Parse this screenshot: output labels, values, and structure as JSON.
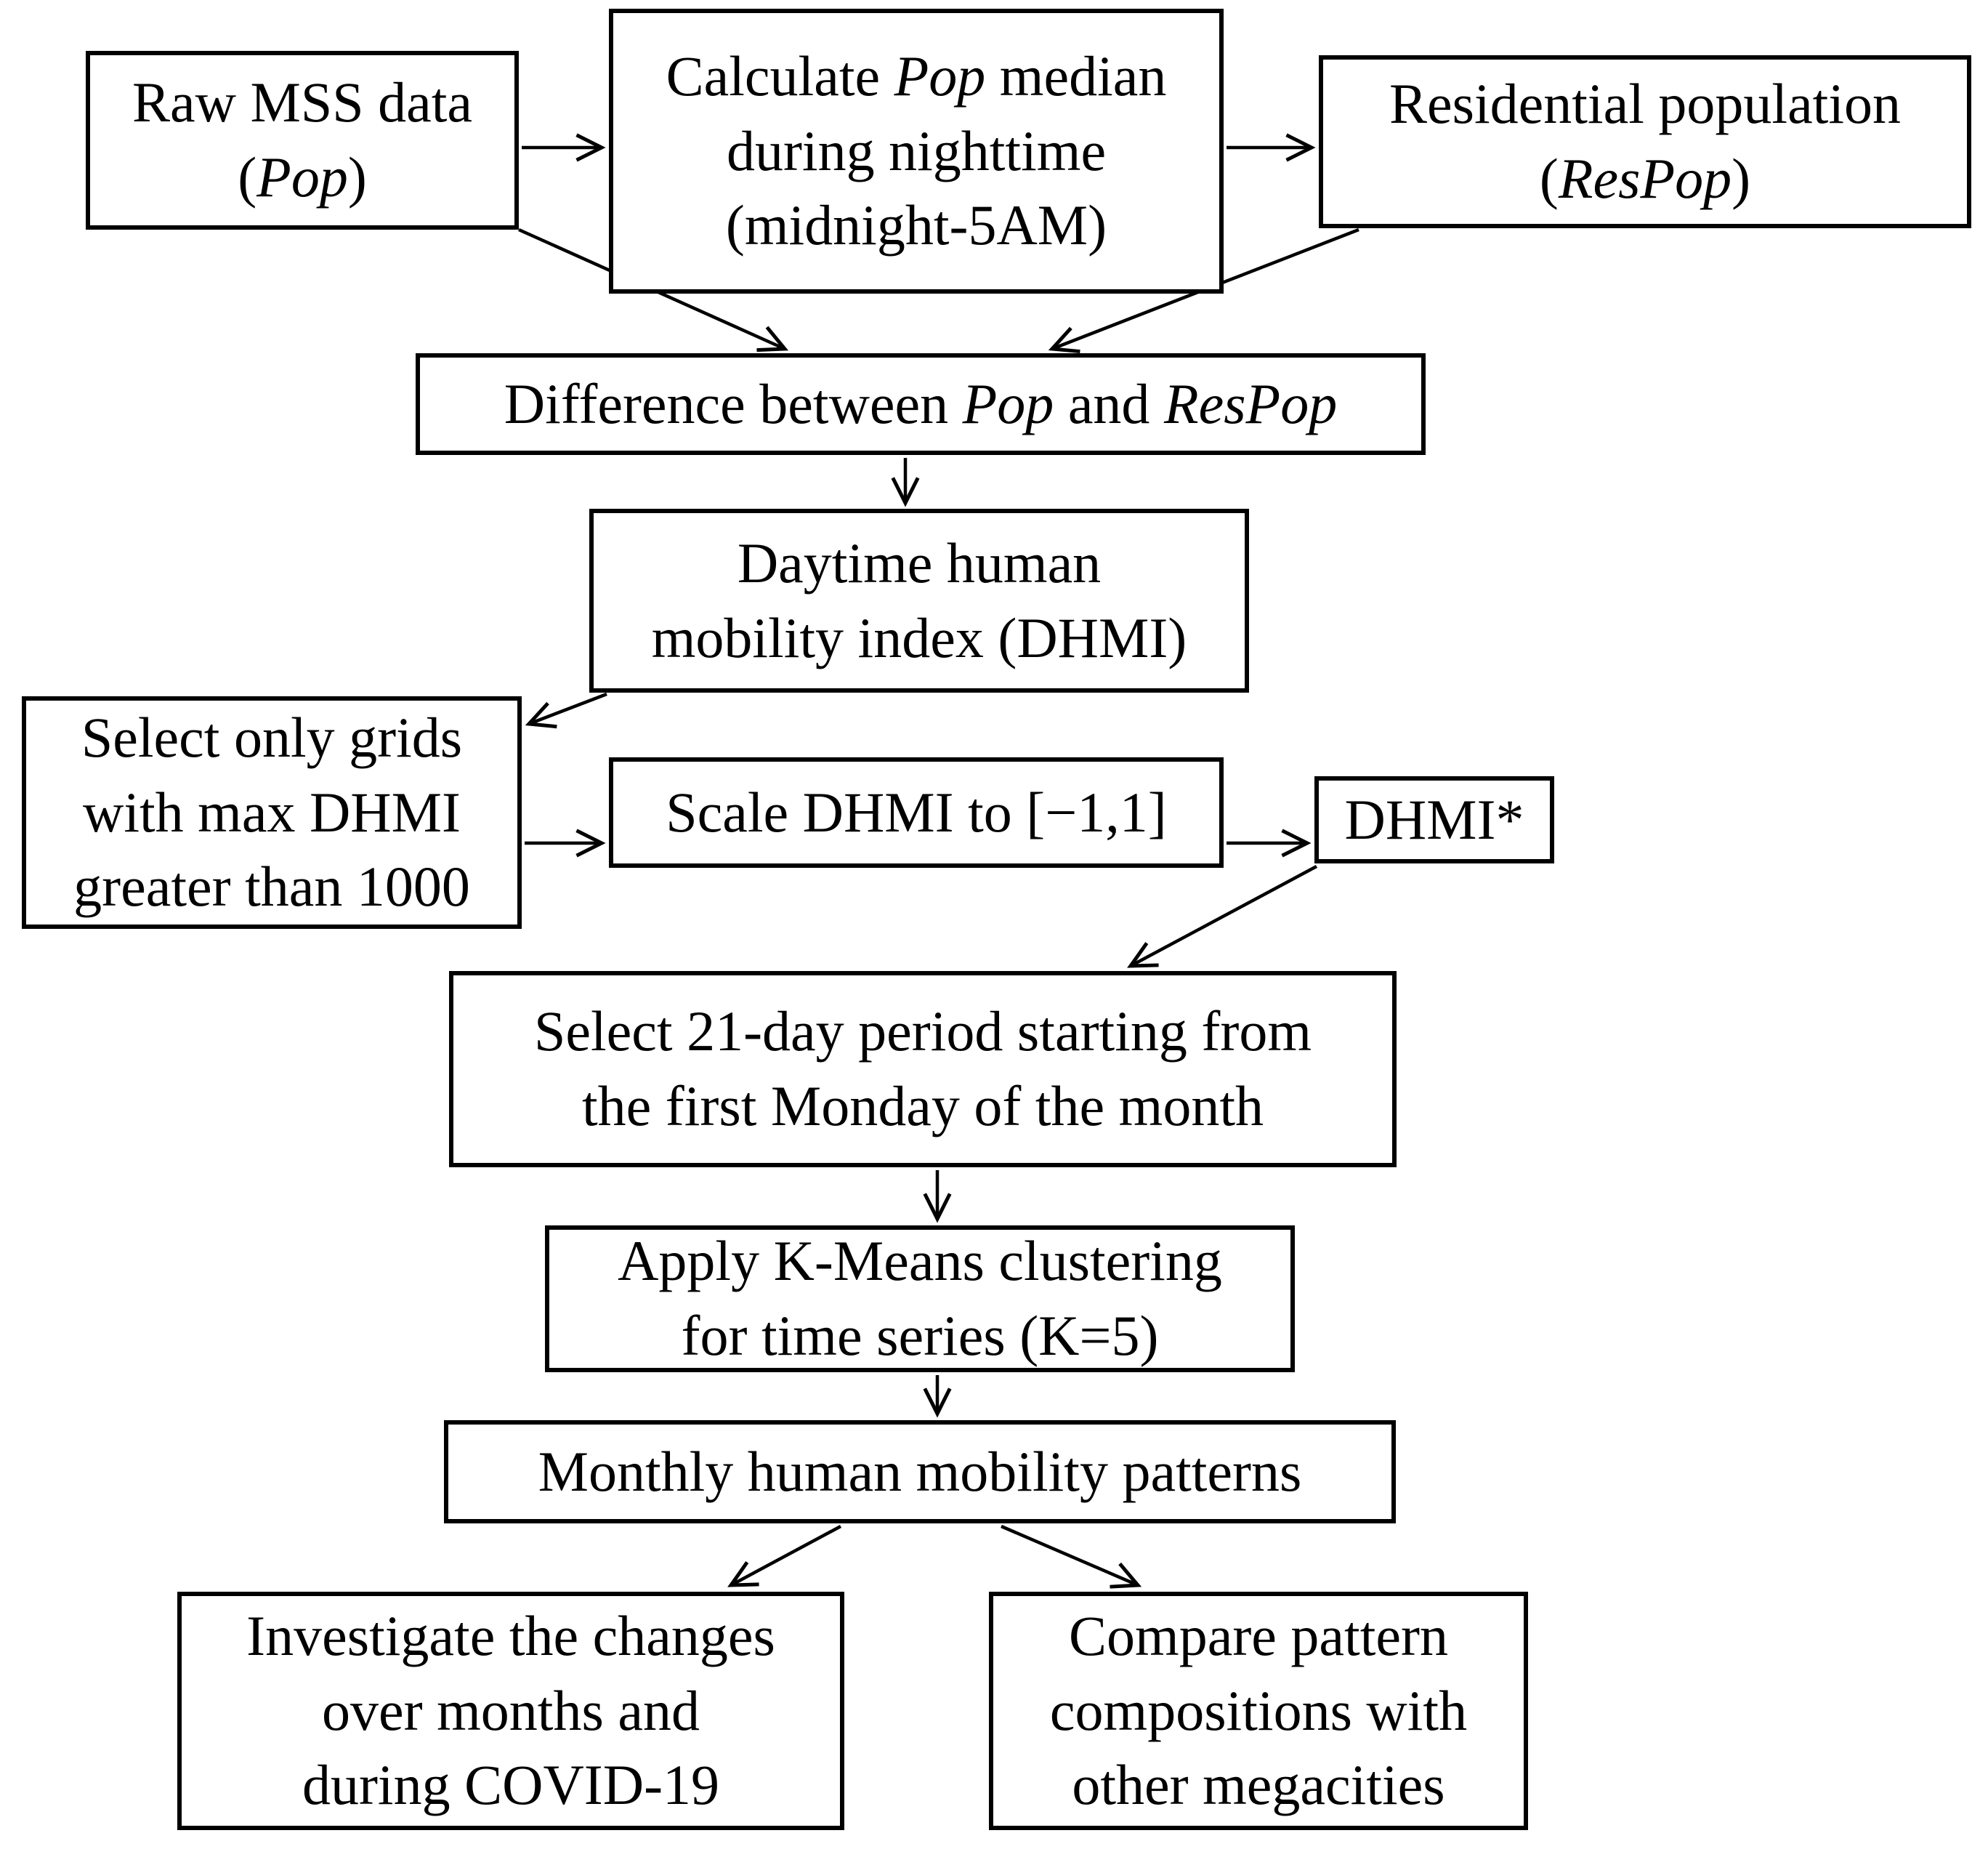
{
  "figure": {
    "type": "flowchart",
    "background_color": "#ffffff",
    "line_color": "#000000",
    "text_color": "#000000"
  },
  "nodes": {
    "raw_mss": {
      "lines": [
        [
          {
            "t": "Raw MSS data"
          }
        ],
        [
          {
            "t": "("
          },
          {
            "t": "Pop",
            "i": true
          },
          {
            "t": ")"
          }
        ]
      ]
    },
    "calc_median": {
      "lines": [
        [
          {
            "t": "Calculate "
          },
          {
            "t": "Pop",
            "i": true
          },
          {
            "t": " median"
          }
        ],
        [
          {
            "t": "during nighttime"
          }
        ],
        [
          {
            "t": "(midnight-5AM)"
          }
        ]
      ]
    },
    "res_pop": {
      "lines": [
        [
          {
            "t": "Residential population"
          }
        ],
        [
          {
            "t": "("
          },
          {
            "t": "ResPop",
            "i": true
          },
          {
            "t": ")"
          }
        ]
      ]
    },
    "difference": {
      "lines": [
        [
          {
            "t": "Difference between "
          },
          {
            "t": "Pop",
            "i": true
          },
          {
            "t": " and "
          },
          {
            "t": "ResPop",
            "i": true
          }
        ]
      ]
    },
    "dhmi": {
      "lines": [
        [
          {
            "t": "Daytime human"
          }
        ],
        [
          {
            "t": "mobility index (DHMI)"
          }
        ]
      ]
    },
    "select_grids": {
      "lines": [
        [
          {
            "t": "Select only grids"
          }
        ],
        [
          {
            "t": "with max DHMI"
          }
        ],
        [
          {
            "t": "greater than 1000"
          }
        ]
      ]
    },
    "scale_dhmi": {
      "lines": [
        [
          {
            "t": "Scale DHMI to [−1,1]"
          }
        ]
      ]
    },
    "dhmi_star": {
      "lines": [
        [
          {
            "t": "DHMI*"
          }
        ]
      ]
    },
    "select_21day": {
      "lines": [
        [
          {
            "t": "Select 21-day period starting from"
          }
        ],
        [
          {
            "t": "the first Monday of the month"
          }
        ]
      ]
    },
    "kmeans": {
      "lines": [
        [
          {
            "t": "Apply K-Means clustering"
          }
        ],
        [
          {
            "t": "for time series (K=5)"
          }
        ]
      ]
    },
    "monthly_patterns": {
      "lines": [
        [
          {
            "t": "Monthly human mobility patterns"
          }
        ]
      ]
    },
    "investigate": {
      "lines": [
        [
          {
            "t": "Investigate the changes"
          }
        ],
        [
          {
            "t": "over months and"
          }
        ],
        [
          {
            "t": "during COVID-19"
          }
        ]
      ]
    },
    "compare": {
      "lines": [
        [
          {
            "t": "Compare pattern"
          }
        ],
        [
          {
            "t": "compositions with"
          }
        ],
        [
          {
            "t": "other megacities"
          }
        ]
      ]
    }
  },
  "edges": [
    {
      "from": "raw_mss",
      "to": "calc_median"
    },
    {
      "from": "calc_median",
      "to": "res_pop"
    },
    {
      "from": "raw_mss",
      "to": "difference"
    },
    {
      "from": "res_pop",
      "to": "difference"
    },
    {
      "from": "difference",
      "to": "dhmi"
    },
    {
      "from": "dhmi",
      "to": "select_grids"
    },
    {
      "from": "select_grids",
      "to": "scale_dhmi"
    },
    {
      "from": "scale_dhmi",
      "to": "dhmi_star"
    },
    {
      "from": "dhmi_star",
      "to": "select_21day"
    },
    {
      "from": "select_21day",
      "to": "kmeans"
    },
    {
      "from": "kmeans",
      "to": "monthly_patterns"
    },
    {
      "from": "monthly_patterns",
      "to": "investigate"
    },
    {
      "from": "monthly_patterns",
      "to": "compare"
    }
  ]
}
